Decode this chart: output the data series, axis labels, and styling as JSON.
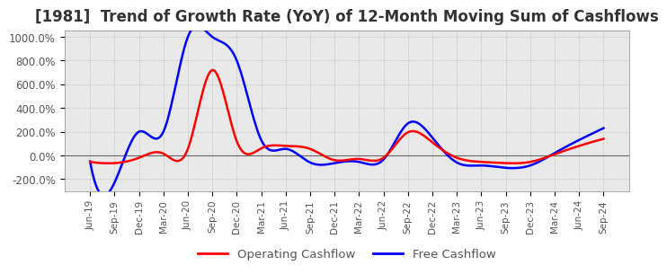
{
  "title": "[1981]  Trend of Growth Rate (YoY) of 12-Month Moving Sum of Cashflows",
  "title_fontsize": 12,
  "ylim": [
    -300,
    1050
  ],
  "yticks": [
    -200,
    0,
    200,
    400,
    600,
    800,
    1000
  ],
  "ytick_labels": [
    "-200.0%",
    "0.0%",
    "200.0%",
    "400.0%",
    "600.0%",
    "800.0%",
    "1000.0%"
  ],
  "background_color": "#ffffff",
  "plot_bg_color": "#e8e8e8",
  "legend": [
    {
      "label": "Operating Cashflow",
      "color": "#ff0000"
    },
    {
      "label": "Free Cashflow",
      "color": "#0000ff"
    }
  ],
  "x_labels": [
    "Jun-19",
    "Sep-19",
    "Dec-19",
    "Mar-20",
    "Jun-20",
    "Sep-20",
    "Dec-20",
    "Mar-21",
    "Jun-21",
    "Sep-21",
    "Dec-21",
    "Mar-22",
    "Jun-22",
    "Sep-22",
    "Dec-22",
    "Mar-23",
    "Jun-23",
    "Sep-23",
    "Dec-23",
    "Mar-24",
    "Jun-24",
    "Sep-24"
  ],
  "operating_cashflow": [
    -55,
    -65,
    -20,
    15,
    55,
    720,
    120,
    60,
    80,
    55,
    -40,
    -30,
    -20,
    195,
    110,
    -20,
    -55,
    -65,
    -55,
    10,
    80,
    140
  ],
  "free_cashflow": [
    -50,
    -230,
    200,
    200,
    1000,
    1000,
    800,
    130,
    55,
    -60,
    -65,
    -55,
    -35,
    270,
    150,
    -60,
    -85,
    -105,
    -85,
    20,
    130,
    230
  ]
}
